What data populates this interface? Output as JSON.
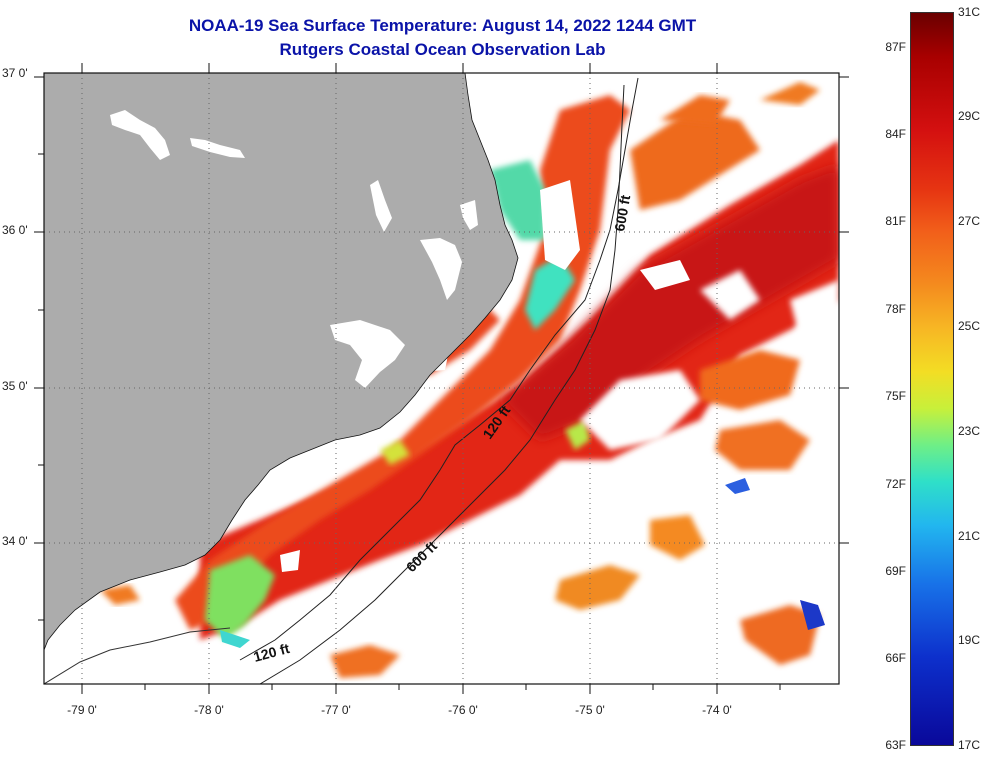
{
  "title": "NOAA-19 Sea Surface Temperature:  August 14, 2022 1244 GMT",
  "subtitle": "Rutgers Coastal Ocean Observation Lab",
  "latitude_labels": [
    "37 0'",
    "36 0'",
    "35 0'",
    "34 0'"
  ],
  "longitude_labels": [
    "-79 0'",
    "-78 0'",
    "-77 0'",
    "-76 0'",
    "-75 0'",
    "-74 0'"
  ],
  "contour_labels": {
    "c600_north": "600 ft",
    "c120_mid": "120 ft",
    "c600_south": "600 ft",
    "c120_south": "120 ft"
  },
  "colorbar": {
    "fahrenheit": [
      "87F",
      "84F",
      "81F",
      "78F",
      "75F",
      "72F",
      "69F",
      "66F",
      "63F"
    ],
    "celsius": [
      "31C",
      "29C",
      "27C",
      "25C",
      "23C",
      "21C",
      "19C",
      "17C"
    ],
    "min_c": 17,
    "max_c": 31
  },
  "colors": {
    "land": "#acacac",
    "title": "#0a13a8",
    "warm_water": "#e4271a",
    "cool_water": "#3fe2c0",
    "cloud": "#ffffff"
  }
}
